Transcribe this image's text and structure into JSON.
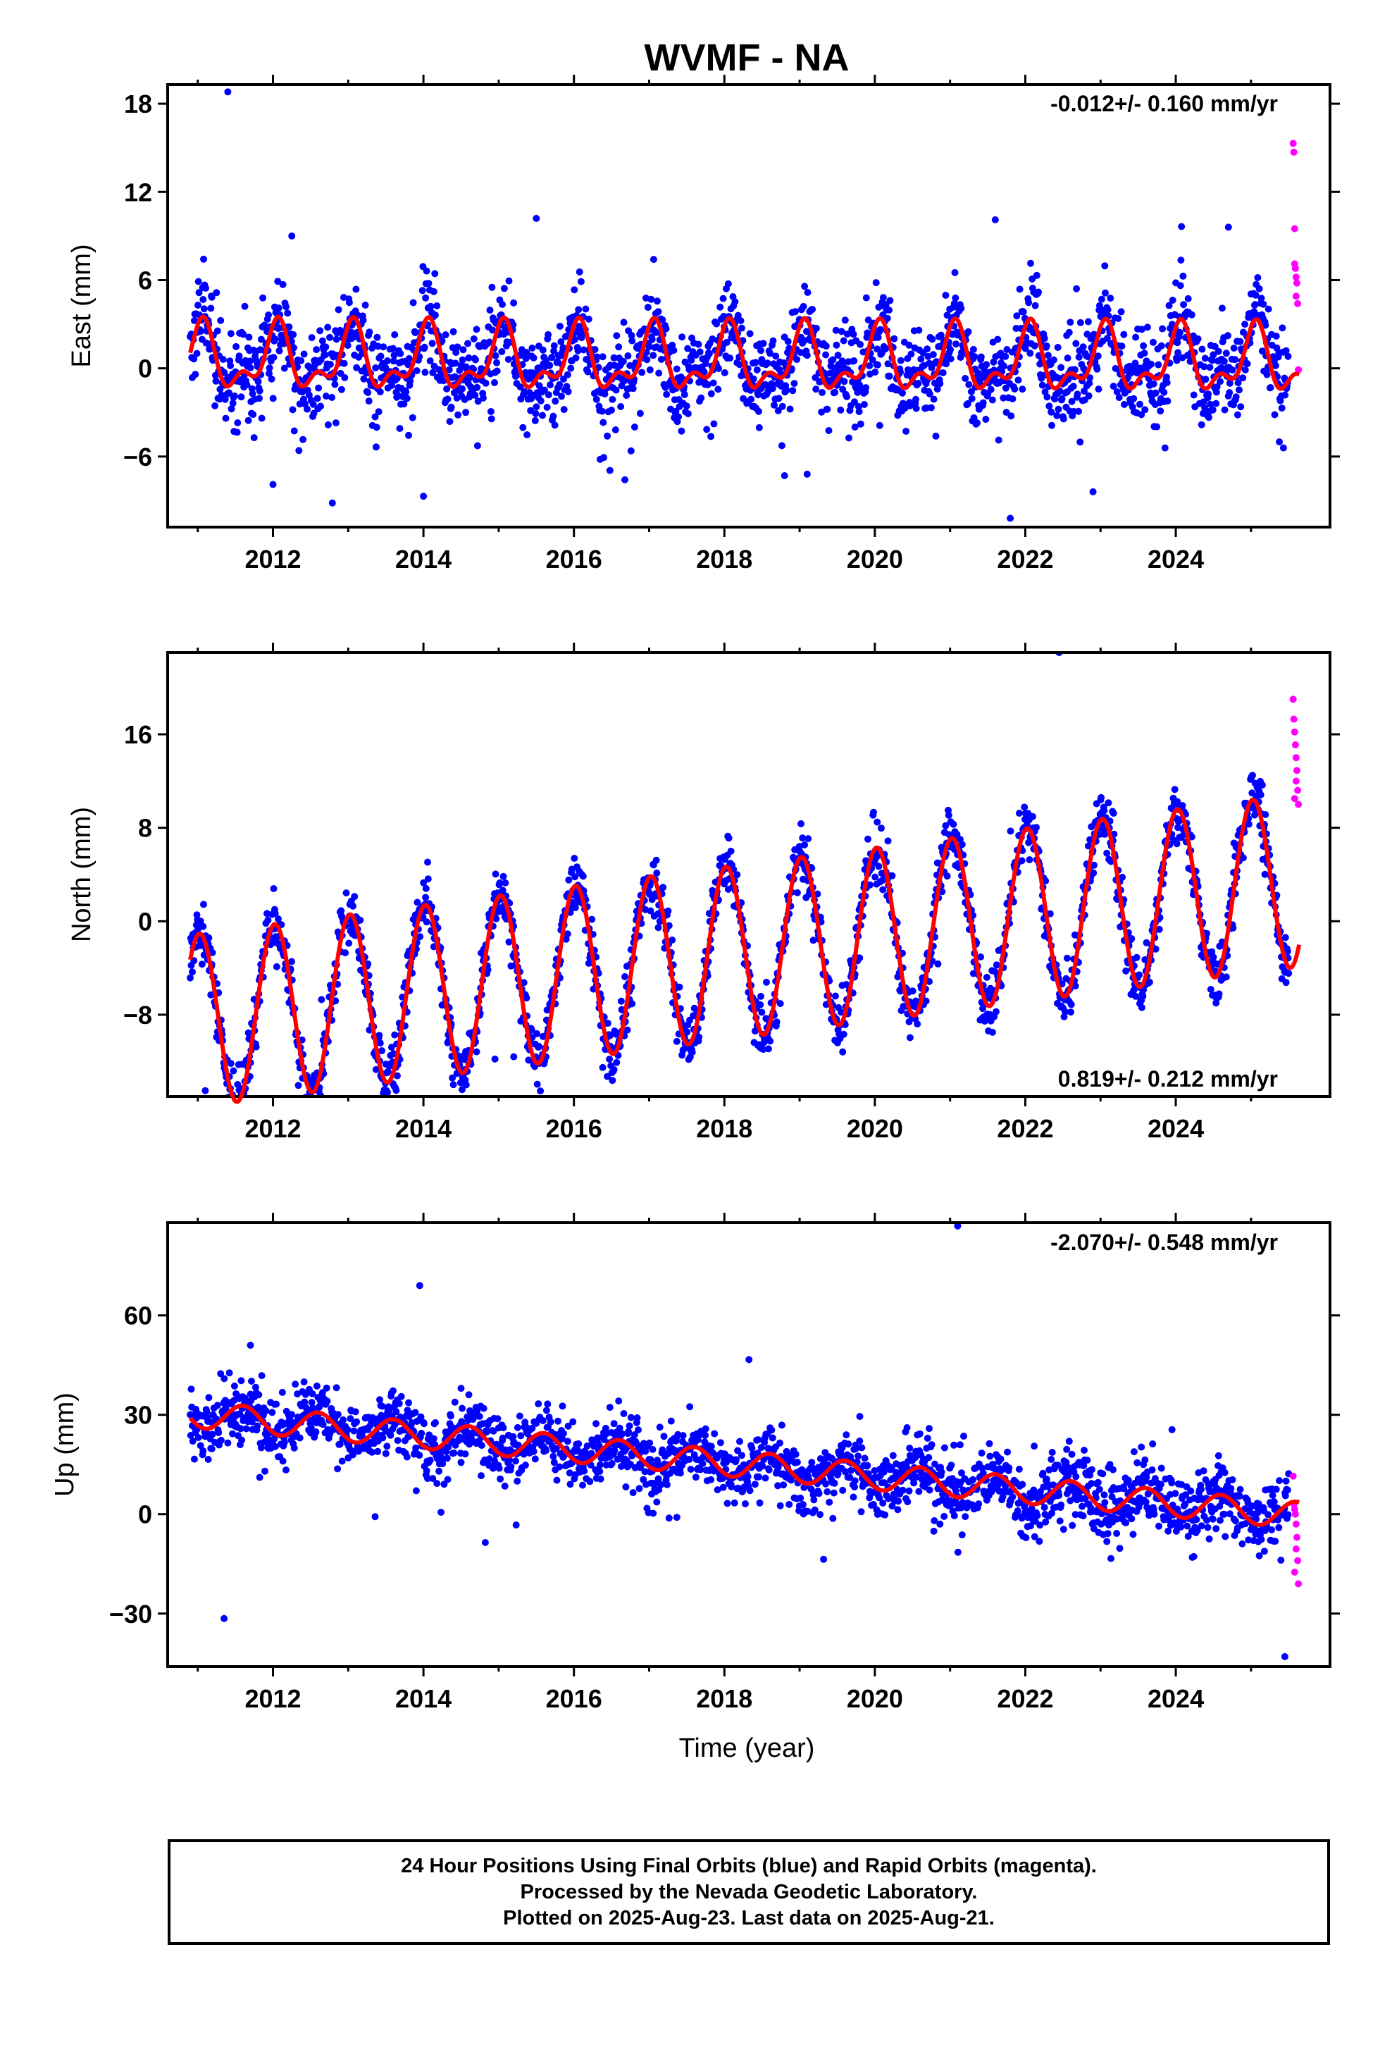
{
  "title": "WVMF - NA",
  "xlabel": "Time (year)",
  "colors": {
    "final": "#0000ff",
    "rapid": "#ff00ff",
    "model": "#ff0000",
    "frame": "#000000"
  },
  "footer": {
    "line1": "24 Hour Positions Using Final Orbits (blue) and Rapid Orbits (magenta).",
    "line2": "Processed by the Nevada Geodetic Laboratory.",
    "line3": "Plotted on 2025-Aug-23. Last data on 2025-Aug-21."
  },
  "chart_data": [
    {
      "type": "scatter",
      "component": "east",
      "ylabel": "East (mm)",
      "rate_label": "-0.012+/- 0.160 mm/yr",
      "rate_position": "top-right",
      "xlim": [
        2010.6,
        2026.05
      ],
      "ylim": [
        -10.8,
        19.3
      ],
      "xticks": [
        2012,
        2014,
        2016,
        2018,
        2020,
        2022,
        2024
      ],
      "yticks": [
        18,
        12,
        6,
        0,
        -6
      ],
      "ytick_labels": [
        "18",
        "12",
        "6",
        "0",
        "−6"
      ],
      "grid": false,
      "data_start": 2010.9,
      "final_end": 2025.5,
      "last_data": 2025.64,
      "model": {
        "offset": 0.5,
        "trend": -0.012,
        "annual_amp": 1.9,
        "annual_phase": -0.3,
        "semiannual_amp": 1.05,
        "semiannual_phase": -1.0
      },
      "scatter_sd": 1.6,
      "outliers": [
        [
          2011.4,
          18.8
        ],
        [
          2012.25,
          9.0
        ],
        [
          2015.5,
          10.2
        ],
        [
          2021.6,
          10.1
        ],
        [
          2024.7,
          9.6
        ],
        [
          2014.0,
          -8.7
        ],
        [
          2021.8,
          -10.2
        ],
        [
          2022.9,
          -8.4
        ],
        [
          2018.8,
          -7.3
        ],
        [
          2012.0,
          -7.9
        ],
        [
          2019.1,
          -7.2
        ]
      ],
      "rapid_points": [
        [
          2025.56,
          15.3
        ],
        [
          2025.57,
          14.7
        ],
        [
          2025.58,
          9.5
        ],
        [
          2025.59,
          6.8
        ],
        [
          2025.6,
          6.2
        ],
        [
          2025.61,
          5.8
        ],
        [
          2025.6,
          4.9
        ],
        [
          2025.62,
          4.4
        ],
        [
          2025.58,
          7.1
        ],
        [
          2025.63,
          -0.1
        ]
      ]
    },
    {
      "type": "scatter",
      "component": "north",
      "ylabel": "North (mm)",
      "rate_label": "0.819+/- 0.212 mm/yr",
      "rate_position": "bottom-right",
      "xlim": [
        2010.6,
        2026.05
      ],
      "ylim": [
        -15,
        23
      ],
      "xticks": [
        2012,
        2014,
        2016,
        2018,
        2020,
        2022,
        2024
      ],
      "yticks": [
        16,
        8,
        0,
        -8
      ],
      "ytick_labels": [
        "16",
        "8",
        "0",
        "−8"
      ],
      "grid": false,
      "data_start": 2010.9,
      "final_end": 2025.5,
      "last_data": 2025.64,
      "model": {
        "offset": -2.75,
        "trend": 0.819,
        "annual_amp": 7.4,
        "annual_phase": -0.15,
        "semiannual_amp": 0.0,
        "semiannual_phase": 0.0
      },
      "scatter_sd": 1.3,
      "outliers": [
        [
          2022.45,
          23.0
        ],
        [
          2014.95,
          -11.8
        ],
        [
          2015.2,
          -11.6
        ],
        [
          2011.1,
          -14.5
        ]
      ],
      "rapid_points": [
        [
          2025.56,
          19.0
        ],
        [
          2025.57,
          17.3
        ],
        [
          2025.58,
          16.2
        ],
        [
          2025.59,
          15.1
        ],
        [
          2025.6,
          14.0
        ],
        [
          2025.61,
          12.9
        ],
        [
          2025.6,
          12.0
        ],
        [
          2025.62,
          11.2
        ],
        [
          2025.58,
          10.5
        ],
        [
          2025.63,
          10.0
        ]
      ]
    },
    {
      "type": "scatter",
      "component": "up",
      "ylabel": "Up (mm)",
      "rate_label": "-2.070+/- 0.548 mm/yr",
      "rate_position": "top-right",
      "xlim": [
        2010.6,
        2026.05
      ],
      "ylim": [
        -46,
        88
      ],
      "xticks": [
        2012,
        2014,
        2016,
        2018,
        2020,
        2022,
        2024
      ],
      "yticks": [
        60,
        30,
        0,
        -30
      ],
      "ytick_labels": [
        "60",
        "30",
        "0",
        "−30"
      ],
      "grid": false,
      "data_start": 2010.9,
      "final_end": 2025.5,
      "last_data": 2025.64,
      "model": {
        "offset": 15.5,
        "trend": -2.07,
        "annual_amp": 4.0,
        "annual_phase": 2.5,
        "semiannual_amp": 0.0,
        "semiannual_phase": 0.0
      },
      "scatter_sd": 4.8,
      "outliers": [
        [
          2021.1,
          87.0
        ],
        [
          2013.95,
          69.0
        ],
        [
          2011.7,
          51.0
        ],
        [
          2011.35,
          -31.5
        ],
        [
          2025.45,
          -43.0
        ],
        [
          2019.8,
          29.5
        ],
        [
          2014.5,
          38.0
        ],
        [
          2023.95,
          25.5
        ]
      ],
      "rapid_points": [
        [
          2025.56,
          11.5
        ],
        [
          2025.57,
          3.0
        ],
        [
          2025.58,
          1.5
        ],
        [
          2025.59,
          0.0
        ],
        [
          2025.6,
          -3.0
        ],
        [
          2025.61,
          -7.0
        ],
        [
          2025.6,
          -10.5
        ],
        [
          2025.62,
          -14.0
        ],
        [
          2025.58,
          -17.5
        ],
        [
          2025.63,
          -21.0
        ]
      ]
    }
  ]
}
